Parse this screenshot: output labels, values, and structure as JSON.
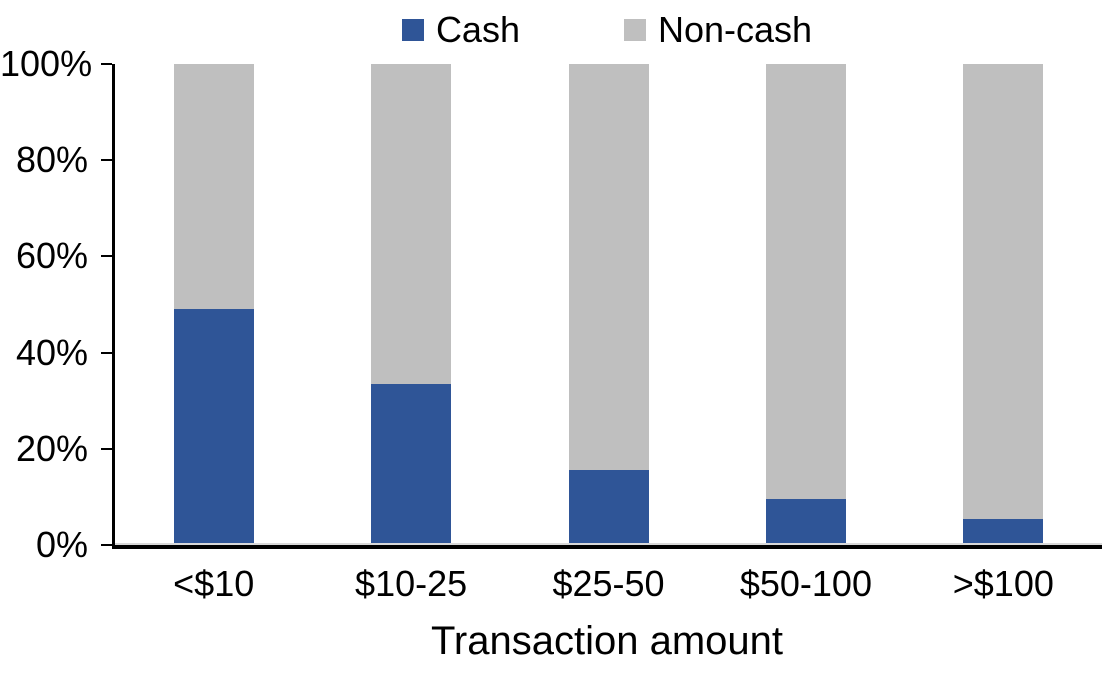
{
  "chart_data": {
    "type": "bar",
    "stacked": true,
    "percent_stacked": true,
    "categories": [
      "<$10",
      "$10-25",
      "$25-50",
      "$50-100",
      ">$100"
    ],
    "series": [
      {
        "name": "Cash",
        "color": "#2F5597",
        "values": [
          49,
          33.5,
          15.5,
          9.5,
          5.5
        ]
      },
      {
        "name": "Non-cash",
        "color": "#BFBFBF",
        "values": [
          51,
          66.5,
          84.5,
          90.5,
          94.5
        ]
      }
    ],
    "title": "",
    "xlabel": "Transaction amount",
    "ylabel": "",
    "ylim": [
      0,
      100
    ],
    "yticks": [
      "0%",
      "20%",
      "40%",
      "60%",
      "80%",
      "100%"
    ],
    "legend_position": "top",
    "grid": false,
    "axis_color": "#000000",
    "gridline_zero_color": "#D9D9D9"
  }
}
